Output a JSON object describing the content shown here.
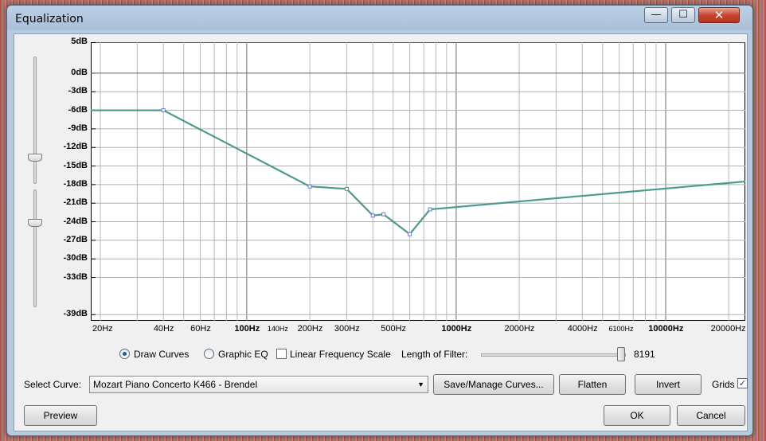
{
  "window": {
    "title": "Equalization",
    "minimize_glyph": "—",
    "maximize_glyph": "☐",
    "close_glyph": "✕"
  },
  "y_axis": {
    "labels": [
      "5dB",
      "0dB",
      "-3dB",
      "-6dB",
      "-9dB",
      "-12dB",
      "-15dB",
      "-18dB",
      "-21dB",
      "-24dB",
      "-27dB",
      "-30dB",
      "-33dB",
      "-39dB"
    ]
  },
  "x_axis": {
    "labels": [
      {
        "text": "20Hz",
        "hz": 20,
        "bold": false,
        "small": false
      },
      {
        "text": "40Hz",
        "hz": 40,
        "bold": false,
        "small": false
      },
      {
        "text": "60Hz",
        "hz": 60,
        "bold": false,
        "small": false
      },
      {
        "text": "100Hz",
        "hz": 100,
        "bold": true,
        "small": false
      },
      {
        "text": "140Hz",
        "hz": 140,
        "bold": false,
        "small": true
      },
      {
        "text": "200Hz",
        "hz": 200,
        "bold": false,
        "small": false
      },
      {
        "text": "300Hz",
        "hz": 300,
        "bold": false,
        "small": false
      },
      {
        "text": "500Hz",
        "hz": 500,
        "bold": false,
        "small": false
      },
      {
        "text": "1000Hz",
        "hz": 1000,
        "bold": true,
        "small": false
      },
      {
        "text": "2000Hz",
        "hz": 2000,
        "bold": false,
        "small": false
      },
      {
        "text": "4000Hz",
        "hz": 4000,
        "bold": false,
        "small": false
      },
      {
        "text": "6100Hz",
        "hz": 6100,
        "bold": false,
        "small": true
      },
      {
        "text": "10000Hz",
        "hz": 10000,
        "bold": true,
        "small": false
      },
      {
        "text": "20000Hz",
        "hz": 20000,
        "bold": false,
        "small": false
      }
    ]
  },
  "chart_data": {
    "type": "line",
    "xscale": "log",
    "xlim": [
      18,
      24000
    ],
    "ylim": [
      -40,
      5
    ],
    "grid": true,
    "series": [
      {
        "color": "#4a9a8e",
        "x": [
          18,
          40,
          200,
          300,
          400,
          450,
          600,
          750,
          24000
        ],
        "y": [
          -6,
          -6,
          -18.3,
          -18.7,
          -23,
          -22.8,
          -26,
          -22,
          -17.5
        ]
      }
    ]
  },
  "controls": {
    "draw_curves": "Draw Curves",
    "graphic_eq": "Graphic EQ",
    "linear_freq": "Linear Frequency Scale",
    "filter_length_label": "Length of Filter:",
    "filter_length_value": "8191",
    "filter_length_level": 1.0
  },
  "curve": {
    "select_label": "Select Curve:",
    "selected": "Mozart Piano Concerto K466 - Brendel",
    "save_manage": "Save/Manage Curves...",
    "flatten": "Flatten",
    "invert": "Invert",
    "grids": "Grids"
  },
  "footer": {
    "preview": "Preview",
    "ok": "OK",
    "cancel": "Cancel"
  }
}
